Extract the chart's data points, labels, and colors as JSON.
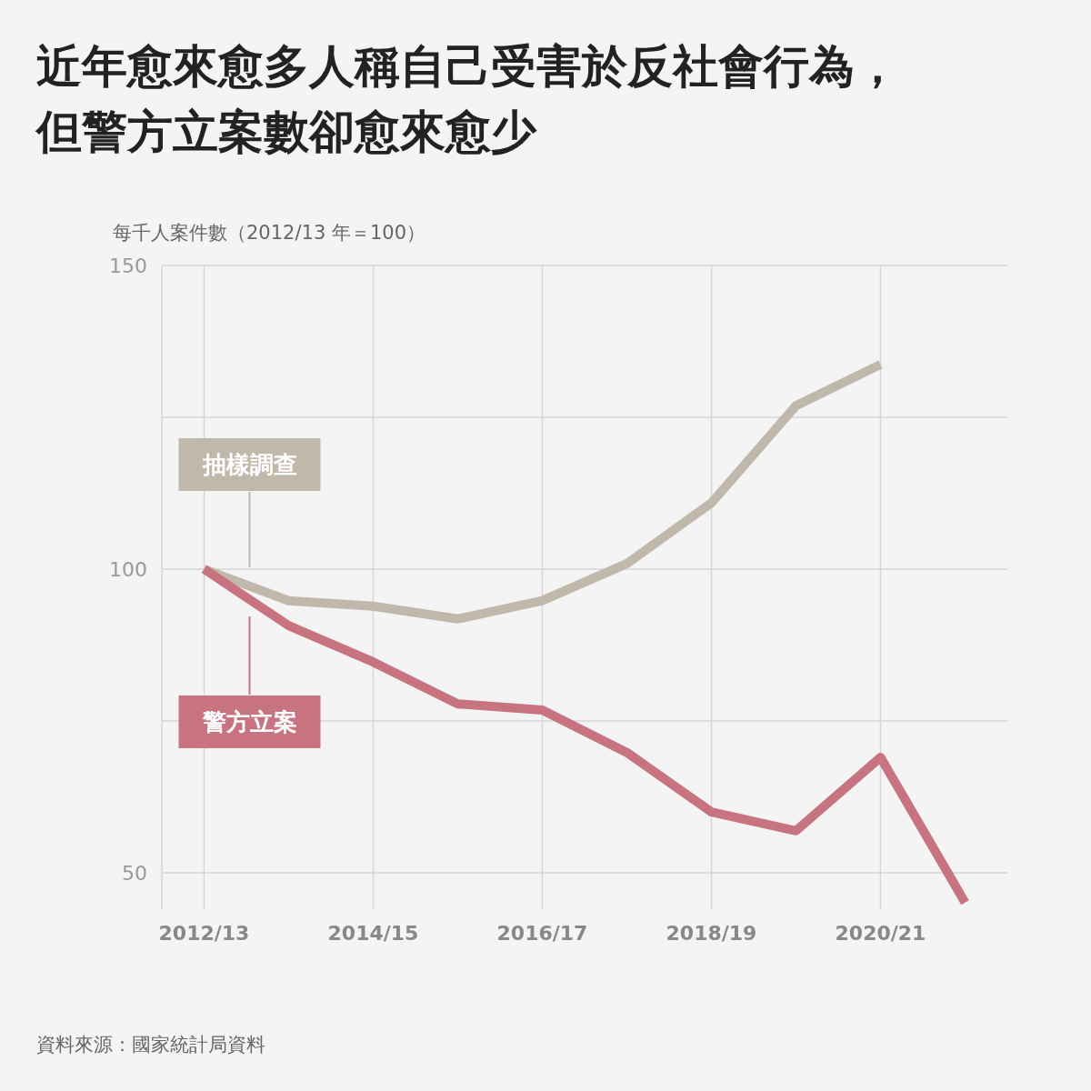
{
  "chart_data": {
    "type": "line",
    "title": "近年愈來愈多人稱自己受害於反社會行為，但警方立案數卻愈來愈少",
    "ylabel": "每千人案件數（2012/13 年＝100）",
    "categories": [
      "2012/13",
      null,
      "2014/15",
      null,
      "2016/17",
      null,
      "2018/19",
      null,
      "2020/21",
      null
    ],
    "series": [
      {
        "name": "抽樣調查",
        "color": "#bfb8ab",
        "values": [
          100,
          94.8,
          93.9,
          91.8,
          94.8,
          100.9,
          110.9,
          126.9,
          133.7,
          null
        ]
      },
      {
        "name": "警方立案",
        "color": "#c77480",
        "values": [
          100,
          90.7,
          84.7,
          77.8,
          76.8,
          69.8,
          60.0,
          56.9,
          69.0,
          45.1
        ]
      }
    ],
    "ylim": [
      44,
      150
    ],
    "yticks": [
      {
        "value": 50,
        "label": "50"
      },
      {
        "value": 75,
        "label": null
      },
      {
        "value": 100,
        "label": "100"
      },
      {
        "value": 125,
        "label": null
      },
      {
        "value": 150,
        "label": "150"
      }
    ],
    "grid": true,
    "annotations": [
      "資料來源：國家統計局資料"
    ]
  }
}
